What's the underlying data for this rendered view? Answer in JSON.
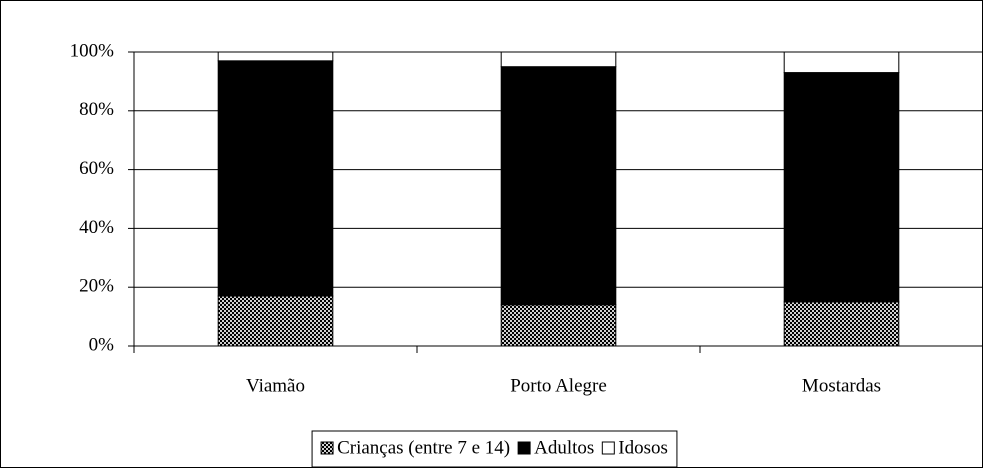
{
  "chart_data": {
    "type": "stacked_bar",
    "categories": [
      "Viamão",
      "Porto Alegre",
      "Mostardas"
    ],
    "series": [
      {
        "name": "Crianças (entre 7 e 14)",
        "color": "#a0a0a0",
        "values": [
          17,
          14,
          15
        ]
      },
      {
        "name": "Adultos",
        "color": "#000000",
        "values": [
          80,
          81,
          78
        ]
      },
      {
        "name": "Idosos",
        "color": "#ffffff",
        "values": [
          3,
          5,
          7
        ]
      }
    ],
    "ylim": [
      0,
      100
    ],
    "yticks": [
      {
        "value": 0,
        "label": "0%"
      },
      {
        "value": 20,
        "label": "20%"
      },
      {
        "value": 40,
        "label": "40%"
      },
      {
        "value": 60,
        "label": "60%"
      },
      {
        "value": 80,
        "label": "80%"
      },
      {
        "value": 100,
        "label": "100%"
      }
    ],
    "grid": true,
    "legend": "bottom"
  }
}
